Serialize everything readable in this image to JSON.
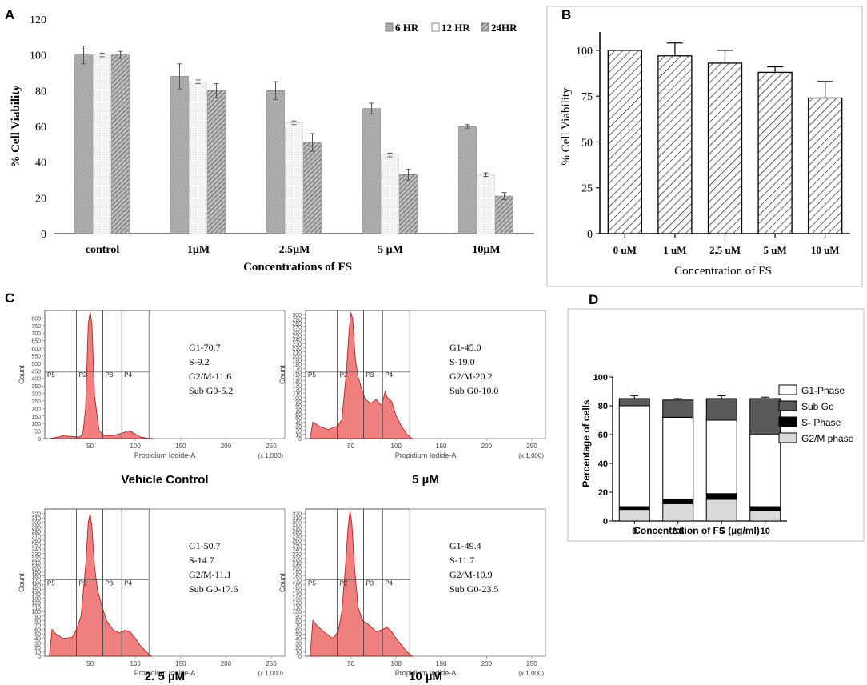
{
  "panels": {
    "A": {
      "label": "A"
    },
    "B": {
      "label": "B"
    },
    "C": {
      "label": "C"
    },
    "D": {
      "label": "D"
    }
  },
  "chart_data": [
    {
      "id": "A",
      "type": "bar",
      "title": "",
      "xlabel": "Concentrations of FS",
      "ylabel": "% Cell Viability",
      "ylim": [
        0,
        120
      ],
      "yticks": [
        0,
        20,
        40,
        60,
        80,
        100,
        120
      ],
      "categories": [
        "control",
        "1µM",
        "2.5µM",
        "5 µM",
        "10µM"
      ],
      "series": [
        {
          "name": "6 HR",
          "values": [
            100,
            88,
            80,
            70,
            60
          ],
          "errors": [
            5,
            7,
            5,
            3,
            1
          ],
          "color": "#a8a8a8"
        },
        {
          "name": "12 HR",
          "values": [
            100,
            85,
            62,
            44,
            33
          ],
          "errors": [
            1,
            1,
            1,
            1,
            1
          ],
          "color": "#f2f2f2"
        },
        {
          "name": "24HR",
          "values": [
            100,
            80,
            51,
            33,
            21
          ],
          "errors": [
            2,
            4,
            5,
            3,
            2
          ],
          "color": "#8c8c8c"
        }
      ],
      "legend": "top-right"
    },
    {
      "id": "B",
      "type": "bar",
      "xlabel": "Concentration of FS",
      "ylabel": "% Cell Viability",
      "ylim": [
        0,
        110
      ],
      "yticks": [
        0,
        25,
        50,
        75,
        100
      ],
      "categories": [
        "0 uM",
        "1 uM",
        "2.5 uM",
        "5 uM",
        "10 uM"
      ],
      "values": [
        100,
        97,
        93,
        88,
        74
      ],
      "errors": [
        0,
        7,
        7,
        3,
        9
      ]
    },
    {
      "id": "C",
      "type": "area",
      "xlabel": "Propidium Iodide-A",
      "ylabel": "Count",
      "x_unit": "(x 1,000)",
      "xticks": [
        50,
        100,
        150,
        200,
        250
      ],
      "gates": [
        "P5",
        "P2",
        "P3",
        "P4"
      ],
      "plots": [
        {
          "name": "Vehicle Control",
          "ymax": 850,
          "yticks": [
            0,
            50,
            100,
            150,
            200,
            250,
            300,
            350,
            400,
            450,
            500,
            550,
            600,
            650,
            700,
            750,
            800
          ],
          "stats": [
            "G1-70.7",
            "S-9.2",
            "G2/M-11.6",
            "Sub G0-5.2"
          ],
          "profile": [
            [
              5,
              0
            ],
            [
              10,
              5
            ],
            [
              20,
              18
            ],
            [
              30,
              14
            ],
            [
              38,
              10
            ],
            [
              42,
              30
            ],
            [
              45,
              200
            ],
            [
              48,
              760
            ],
            [
              50,
              840
            ],
            [
              52,
              760
            ],
            [
              55,
              280
            ],
            [
              60,
              50
            ],
            [
              66,
              20
            ],
            [
              75,
              20
            ],
            [
              85,
              35
            ],
            [
              92,
              50
            ],
            [
              96,
              45
            ],
            [
              100,
              30
            ],
            [
              105,
              12
            ],
            [
              112,
              3
            ],
            [
              120,
              0
            ]
          ]
        },
        {
          "name": "5 µM",
          "ymax": 310,
          "yticks": [
            0,
            10,
            20,
            30,
            40,
            50,
            60,
            70,
            80,
            90,
            100,
            110,
            120,
            130,
            140,
            150,
            160,
            170,
            180,
            190,
            200,
            210,
            220,
            230,
            240,
            250,
            260,
            270,
            280,
            290,
            300
          ],
          "stats": [
            "G1-45.0",
            "S-19.0",
            "G2/M-20.2",
            "Sub G0-10.0"
          ],
          "profile": [
            [
              5,
              0
            ],
            [
              8,
              40
            ],
            [
              15,
              30
            ],
            [
              25,
              22
            ],
            [
              35,
              30
            ],
            [
              40,
              45
            ],
            [
              45,
              160
            ],
            [
              48,
              260
            ],
            [
              50,
              305
            ],
            [
              52,
              290
            ],
            [
              55,
              190
            ],
            [
              58,
              150
            ],
            [
              62,
              120
            ],
            [
              66,
              95
            ],
            [
              72,
              85
            ],
            [
              78,
              95
            ],
            [
              84,
              80
            ],
            [
              88,
              115
            ],
            [
              90,
              100
            ],
            [
              95,
              90
            ],
            [
              100,
              55
            ],
            [
              106,
              30
            ],
            [
              112,
              10
            ],
            [
              118,
              0
            ]
          ]
        },
        {
          "name": "2. 5 µM",
          "ymax": 330,
          "yticks": [
            0,
            10,
            20,
            30,
            40,
            50,
            60,
            70,
            80,
            90,
            100,
            110,
            120,
            130,
            140,
            150,
            160,
            170,
            180,
            190,
            200,
            210,
            220,
            230,
            240,
            250,
            260,
            270,
            280,
            290,
            300,
            310,
            320
          ],
          "stats": [
            "G1-50.7",
            "S-14.7",
            "G2/M-11.1",
            "Sub G0-17.6"
          ],
          "profile": [
            [
              5,
              0
            ],
            [
              8,
              60
            ],
            [
              12,
              50
            ],
            [
              20,
              40
            ],
            [
              30,
              42
            ],
            [
              35,
              60
            ],
            [
              40,
              90
            ],
            [
              45,
              200
            ],
            [
              48,
              300
            ],
            [
              50,
              320
            ],
            [
              52,
              290
            ],
            [
              55,
              200
            ],
            [
              58,
              150
            ],
            [
              62,
              120
            ],
            [
              68,
              80
            ],
            [
              75,
              60
            ],
            [
              82,
              52
            ],
            [
              88,
              58
            ],
            [
              94,
              55
            ],
            [
              100,
              40
            ],
            [
              105,
              25
            ],
            [
              112,
              10
            ],
            [
              118,
              0
            ]
          ]
        },
        {
          "name": "10 µM",
          "ymax": 330,
          "yticks": [
            0,
            10,
            20,
            30,
            40,
            50,
            60,
            70,
            80,
            90,
            100,
            110,
            120,
            130,
            140,
            150,
            160,
            170,
            180,
            190,
            200,
            210,
            220,
            230,
            240,
            250,
            260,
            270,
            280,
            290,
            300,
            310,
            320
          ],
          "stats": [
            "G1-49.4",
            "S-11.7",
            "G2/M-10.9",
            "Sub G0-23.5"
          ],
          "profile": [
            [
              5,
              0
            ],
            [
              8,
              80
            ],
            [
              12,
              70
            ],
            [
              20,
              55
            ],
            [
              30,
              40
            ],
            [
              36,
              55
            ],
            [
              40,
              100
            ],
            [
              44,
              200
            ],
            [
              47,
              290
            ],
            [
              49,
              325
            ],
            [
              51,
              300
            ],
            [
              54,
              200
            ],
            [
              58,
              110
            ],
            [
              63,
              80
            ],
            [
              70,
              70
            ],
            [
              78,
              55
            ],
            [
              85,
              60
            ],
            [
              90,
              65
            ],
            [
              95,
              55
            ],
            [
              100,
              40
            ],
            [
              106,
              25
            ],
            [
              112,
              10
            ],
            [
              118,
              0
            ]
          ]
        }
      ]
    },
    {
      "id": "D",
      "type": "bar",
      "stacked": true,
      "xlabel": "Concentration of FS (µg/ml)",
      "ylabel": "Percentage of cells",
      "ylim": [
        0,
        100
      ],
      "yticks": [
        0,
        20,
        40,
        60,
        80,
        100
      ],
      "categories": [
        "0",
        "2.5",
        "5",
        "10"
      ],
      "series": [
        {
          "name": "G2/M phase",
          "values": [
            8,
            12,
            15,
            7
          ],
          "color": "#d9d9d9"
        },
        {
          "name": "S- Phase",
          "values": [
            2,
            3,
            4,
            3
          ],
          "color": "#000000"
        },
        {
          "name": "G1-Phase",
          "values": [
            70,
            57,
            51,
            50
          ],
          "color": "#ffffff"
        },
        {
          "name": "Sub Go",
          "values": [
            5,
            12,
            15,
            25
          ],
          "color": "#595959"
        }
      ],
      "legend_order": [
        "G1-Phase",
        "Sub Go",
        "S- Phase",
        "G2/M phase"
      ],
      "legend": "right"
    }
  ]
}
